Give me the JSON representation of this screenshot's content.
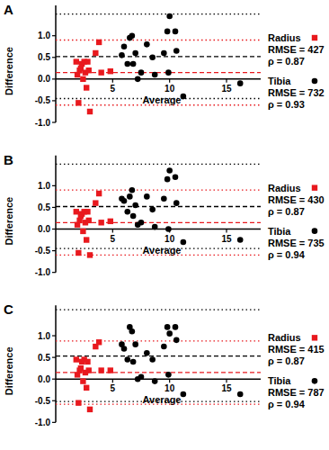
{
  "chart_data": [
    {
      "type": "scatter",
      "title": "A",
      "x_label": "Average",
      "y_label": "Difference",
      "xlim": [
        0,
        18
      ],
      "ylim": [
        -1.0,
        1.7
      ],
      "xticks": [
        5,
        10,
        15
      ],
      "yticks": [
        {
          "value": -1,
          "label": "-1.0"
        },
        -0.5,
        {
          "value": 0,
          "label": "0.0"
        },
        0.5,
        {
          "value": 1,
          "label": "1.0"
        }
      ],
      "series": [
        {
          "name": "Radius",
          "color": "#e8191e",
          "marker": "square",
          "x": [
            1.8,
            1.9,
            2.0,
            2.1,
            2.2,
            2.3,
            2.4,
            2.5,
            2.6,
            2.7,
            2.8,
            2.9,
            3.0,
            3.5,
            3.8,
            4.0,
            4.8
          ],
          "values": [
            0.4,
            0.1,
            -0.55,
            0.2,
            0.25,
            0.35,
            0.0,
            0.4,
            0.15,
            -0.2,
            0.4,
            0.2,
            -0.75,
            0.6,
            0.85,
            0.15,
            0.18
          ],
          "mean": 0.15,
          "loa": [
            -0.6,
            0.9
          ],
          "annotations": [
            "RMSE = 427",
            "ρ = 0.87"
          ]
        },
        {
          "name": "Tibia",
          "color": "#000000",
          "marker": "circle",
          "x": [
            5.8,
            6.0,
            6.3,
            6.5,
            6.7,
            6.8,
            7.0,
            7.2,
            7.5,
            8.0,
            8.5,
            8.7,
            9.5,
            9.8,
            9.9,
            10.0,
            10.5,
            10.6,
            11.2,
            16.2
          ],
          "values": [
            0.55,
            0.75,
            0.35,
            0.95,
            1.0,
            0.35,
            0.6,
            0.0,
            0.15,
            0.8,
            0.5,
            0.1,
            0.6,
            1.1,
            0.15,
            1.45,
            1.1,
            0.65,
            -0.4,
            -0.1
          ],
          "mean": 0.52,
          "loa": [
            -0.45,
            1.5
          ],
          "annotations": [
            "RMSE = 732",
            "ρ = 0.93"
          ]
        }
      ]
    },
    {
      "type": "scatter",
      "title": "B",
      "x_label": "Average",
      "y_label": "Difference",
      "xlim": [
        0,
        18
      ],
      "ylim": [
        -1.0,
        1.7
      ],
      "xticks": [
        5,
        10,
        15
      ],
      "yticks": [
        {
          "value": -1,
          "label": "-1.0"
        },
        -0.5,
        {
          "value": 0,
          "label": "0.0"
        },
        0.5,
        {
          "value": 1,
          "label": "1.0"
        }
      ],
      "series": [
        {
          "name": "Radius",
          "color": "#e8191e",
          "marker": "square",
          "x": [
            1.8,
            1.9,
            2.0,
            2.1,
            2.2,
            2.3,
            2.4,
            2.5,
            2.6,
            2.7,
            2.8,
            2.9,
            3.0,
            3.5,
            3.8,
            4.0,
            4.8
          ],
          "values": [
            0.4,
            0.1,
            -0.55,
            0.2,
            0.3,
            0.35,
            -0.05,
            0.4,
            0.15,
            -0.25,
            0.4,
            0.2,
            -0.6,
            0.6,
            0.82,
            0.15,
            0.18
          ],
          "mean": 0.15,
          "loa": [
            -0.6,
            0.9
          ],
          "annotations": [
            "RMSE = 430",
            "ρ = 0.87"
          ]
        },
        {
          "name": "Tibia",
          "color": "#000000",
          "marker": "circle",
          "x": [
            5.8,
            6.0,
            6.3,
            6.5,
            6.7,
            6.8,
            7.0,
            7.2,
            7.5,
            8.0,
            8.5,
            8.7,
            9.5,
            9.8,
            9.9,
            10.0,
            10.5,
            10.6,
            11.2,
            16.2
          ],
          "values": [
            0.7,
            0.65,
            0.4,
            0.75,
            0.9,
            0.3,
            0.55,
            0.1,
            0.15,
            0.75,
            0.45,
            0.05,
            0.7,
            1.15,
            0.0,
            1.35,
            1.2,
            0.6,
            -0.3,
            -0.25
          ],
          "mean": 0.52,
          "loa": [
            -0.45,
            1.5
          ],
          "annotations": [
            "RMSE = 735",
            "ρ = 0.94"
          ]
        }
      ]
    },
    {
      "type": "scatter",
      "title": "C",
      "x_label": "Average",
      "y_label": "Difference",
      "xlim": [
        0,
        18
      ],
      "ylim": [
        -1.0,
        1.7
      ],
      "xticks": [
        5,
        10,
        15
      ],
      "yticks": [
        {
          "value": -1,
          "label": "-1.0"
        },
        -0.5,
        {
          "value": 0,
          "label": "0.0"
        },
        0.5,
        {
          "value": 1,
          "label": "1.0"
        }
      ],
      "series": [
        {
          "name": "Radius",
          "color": "#e8191e",
          "marker": "square",
          "x": [
            1.8,
            1.9,
            2.0,
            2.1,
            2.2,
            2.3,
            2.4,
            2.5,
            2.6,
            2.7,
            2.8,
            2.9,
            3.0,
            3.5,
            3.8,
            4.0,
            4.8
          ],
          "values": [
            0.45,
            0.1,
            -0.55,
            0.2,
            0.25,
            0.4,
            -0.05,
            0.45,
            0.15,
            -0.2,
            0.4,
            0.2,
            -0.7,
            0.75,
            0.85,
            0.2,
            0.2
          ],
          "mean": 0.15,
          "loa": [
            -0.58,
            0.88
          ],
          "annotations": [
            "RMSE = 415",
            "ρ = 0.87"
          ]
        },
        {
          "name": "Tibia",
          "color": "#000000",
          "marker": "circle",
          "x": [
            5.8,
            6.0,
            6.3,
            6.5,
            6.7,
            6.8,
            7.0,
            7.2,
            7.5,
            8.0,
            8.5,
            8.7,
            9.5,
            9.8,
            9.9,
            10.0,
            10.5,
            10.6,
            11.2,
            16.2
          ],
          "values": [
            0.8,
            0.7,
            0.45,
            1.2,
            1.1,
            0.4,
            0.8,
            0.0,
            0.05,
            0.6,
            0.45,
            -0.05,
            0.75,
            1.2,
            0.1,
            1.05,
            1.2,
            0.9,
            -0.35,
            -0.35
          ],
          "mean": 0.53,
          "loa": [
            -0.52,
            1.6
          ],
          "annotations": [
            "RMSE = 787",
            "ρ = 0.94"
          ]
        }
      ]
    }
  ]
}
